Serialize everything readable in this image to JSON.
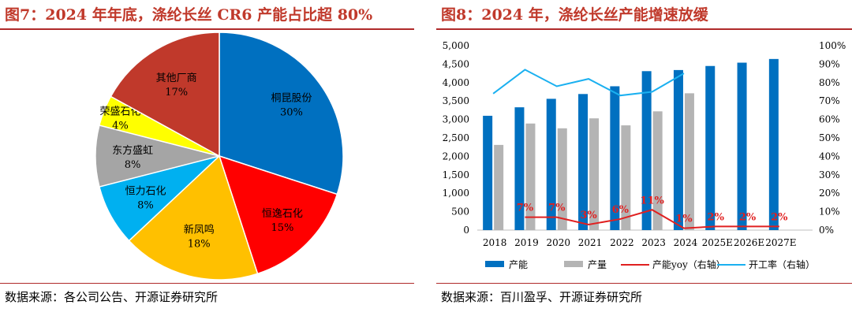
{
  "left": {
    "title": "图7：2024 年年底，涤纶长丝 CR6 产能占比超 80%",
    "source": "数据来源：各公司公告、开源证券研究所"
  },
  "right": {
    "title": "图8：2024 年，涤纶长丝产能增速放缓",
    "source": "数据来源：百川盈孚、开源证券研究所"
  },
  "chart_data": [
    {
      "type": "pie",
      "slices": [
        {
          "label": "桐昆股份",
          "pct_label": "30%",
          "value": 30,
          "color": "#0070c0"
        },
        {
          "label": "恒逸石化",
          "pct_label": "15%",
          "value": 15,
          "color": "#ff0000"
        },
        {
          "label": "新凤鸣",
          "pct_label": "18%",
          "value": 18,
          "color": "#ffc000"
        },
        {
          "label": "恒力石化",
          "pct_label": "8%",
          "value": 8,
          "color": "#00b0f0"
        },
        {
          "label": "东方盛虹",
          "pct_label": "8%",
          "value": 8,
          "color": "#a5a5a5"
        },
        {
          "label": "荣盛石化",
          "pct_label": "4%",
          "value": 4,
          "color": "#ffff00"
        },
        {
          "label": "其他厂商",
          "pct_label": "17%",
          "value": 17,
          "color": "#c0392b"
        }
      ]
    },
    {
      "type": "bar",
      "categories": [
        "2018",
        "2019",
        "2020",
        "2021",
        "2022",
        "2023",
        "2024",
        "2025E",
        "2026E",
        "2027E"
      ],
      "ylim": [
        0,
        5000
      ],
      "yticks": [
        "0",
        "500",
        "1,000",
        "1,500",
        "2,000",
        "2,500",
        "3,000",
        "3,500",
        "4,000",
        "4,500",
        "5,000"
      ],
      "y2lim": [
        0,
        100
      ],
      "y2ticks": [
        "0%",
        "10%",
        "20%",
        "30%",
        "40%",
        "50%",
        "60%",
        "70%",
        "80%",
        "90%",
        "100%"
      ],
      "series": [
        {
          "name": "产能",
          "kind": "bar",
          "color": "#0070c0",
          "values": [
            3100,
            3330,
            3560,
            3690,
            3900,
            4310,
            4340,
            4450,
            4540,
            4640
          ]
        },
        {
          "name": "产量",
          "kind": "bar",
          "color": "#b4b4b4",
          "values": [
            2310,
            2890,
            2760,
            3030,
            2840,
            3220,
            3710,
            null,
            null,
            null
          ]
        },
        {
          "name": "产能yoy（右轴）",
          "kind": "line",
          "color": "#e02020",
          "values": [
            null,
            7,
            7,
            3,
            6,
            11,
            1,
            2,
            2,
            2
          ],
          "labels": [
            "",
            "7%",
            "7%",
            "3%",
            "6%",
            "11%",
            "1%",
            "2%",
            "2%",
            "2%"
          ]
        },
        {
          "name": "开工率（右轴）",
          "kind": "line",
          "color": "#1ab0f0",
          "values": [
            74,
            87,
            78,
            82,
            73,
            75,
            85,
            null,
            null,
            null
          ]
        }
      ]
    }
  ]
}
